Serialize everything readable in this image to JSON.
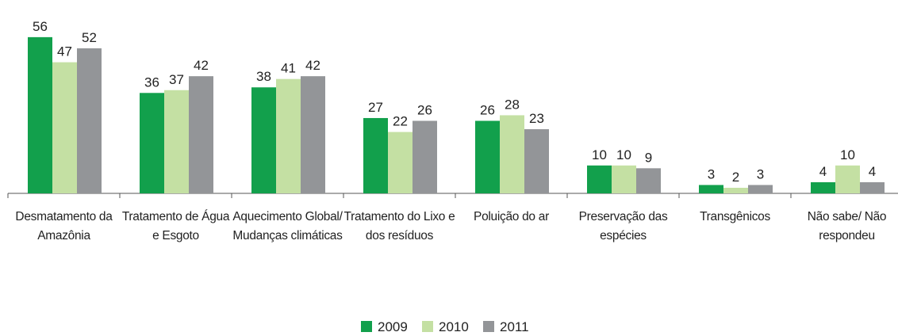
{
  "chart_data": {
    "type": "bar",
    "categories": [
      "Desmatamento da Amazônia",
      "Tratamento de Água e Esgoto",
      "Aquecimento Global/ Mudanças climáticas",
      "Tratamento do Lixo e dos resíduos",
      "Poluição do ar",
      "Preservação das espécies",
      "Transgênicos",
      "Não sabe/ Não respondeu"
    ],
    "series": [
      {
        "name": "2009",
        "color": "#12a04c",
        "values": [
          56,
          36,
          38,
          27,
          26,
          10,
          3,
          4
        ]
      },
      {
        "name": "2010",
        "color": "#c4e0a3",
        "values": [
          47,
          37,
          41,
          22,
          28,
          10,
          2,
          10
        ]
      },
      {
        "name": "2011",
        "color": "#939598",
        "values": [
          52,
          42,
          42,
          26,
          23,
          9,
          3,
          4
        ]
      }
    ],
    "legend": "bottom"
  }
}
